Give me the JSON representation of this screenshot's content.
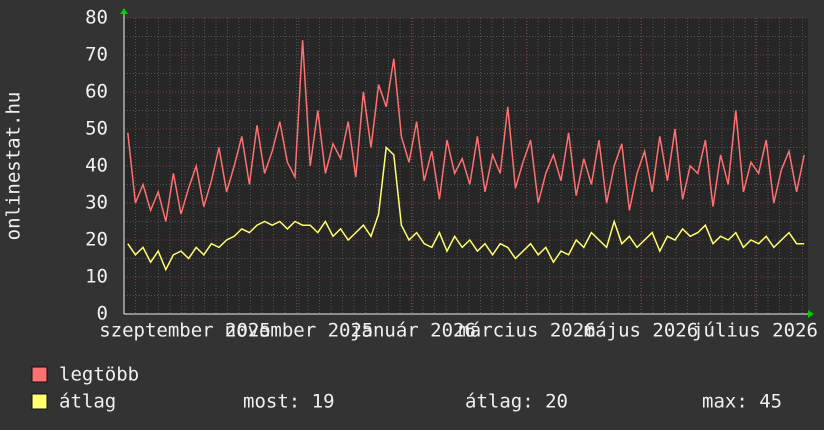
{
  "chart_data": {
    "type": "line",
    "ylabel": "onlinestat.hu",
    "x_labels": [
      "szeptember 2025",
      "november 2025",
      "január 2026",
      "március 2026",
      "május 2026",
      "július 2026"
    ],
    "ylim": [
      0,
      80
    ],
    "yticks": [
      0,
      10,
      20,
      30,
      40,
      50,
      60,
      70,
      80
    ],
    "grid": true,
    "series": [
      {
        "name": "legtöbb",
        "color": "#ff7070",
        "values": [
          49,
          30,
          35,
          28,
          33,
          25,
          38,
          27,
          34,
          40,
          29,
          36,
          45,
          33,
          40,
          48,
          35,
          51,
          38,
          44,
          52,
          41,
          37,
          74,
          40,
          55,
          38,
          46,
          42,
          52,
          37,
          60,
          45,
          62,
          56,
          69,
          48,
          41,
          52,
          36,
          44,
          31,
          47,
          38,
          42,
          35,
          48,
          33,
          43,
          38,
          56,
          34,
          41,
          47,
          30,
          38,
          43,
          36,
          49,
          32,
          42,
          35,
          47,
          30,
          40,
          46,
          28,
          38,
          44,
          33,
          48,
          36,
          50,
          31,
          40,
          38,
          47,
          29,
          43,
          35,
          55,
          33,
          41,
          38,
          47,
          30,
          39,
          44,
          33,
          43
        ]
      },
      {
        "name": "átlag",
        "color": "#ffff70",
        "values": [
          19,
          16,
          18,
          14,
          17,
          12,
          16,
          17,
          15,
          18,
          16,
          19,
          18,
          20,
          21,
          23,
          22,
          24,
          25,
          24,
          25,
          23,
          25,
          24,
          24,
          22,
          25,
          21,
          23,
          20,
          22,
          24,
          21,
          27,
          45,
          43,
          24,
          20,
          22,
          19,
          18,
          22,
          17,
          21,
          18,
          20,
          17,
          19,
          16,
          19,
          18,
          15,
          17,
          19,
          16,
          18,
          14,
          17,
          16,
          20,
          18,
          22,
          20,
          18,
          25,
          19,
          21,
          18,
          20,
          22,
          17,
          21,
          20,
          23,
          21,
          22,
          24,
          19,
          21,
          20,
          22,
          18,
          20,
          19,
          21,
          18,
          20,
          22,
          19,
          19
        ]
      }
    ],
    "stats": [
      "most: 19",
      "átlag: 20",
      "max: 45"
    ]
  }
}
